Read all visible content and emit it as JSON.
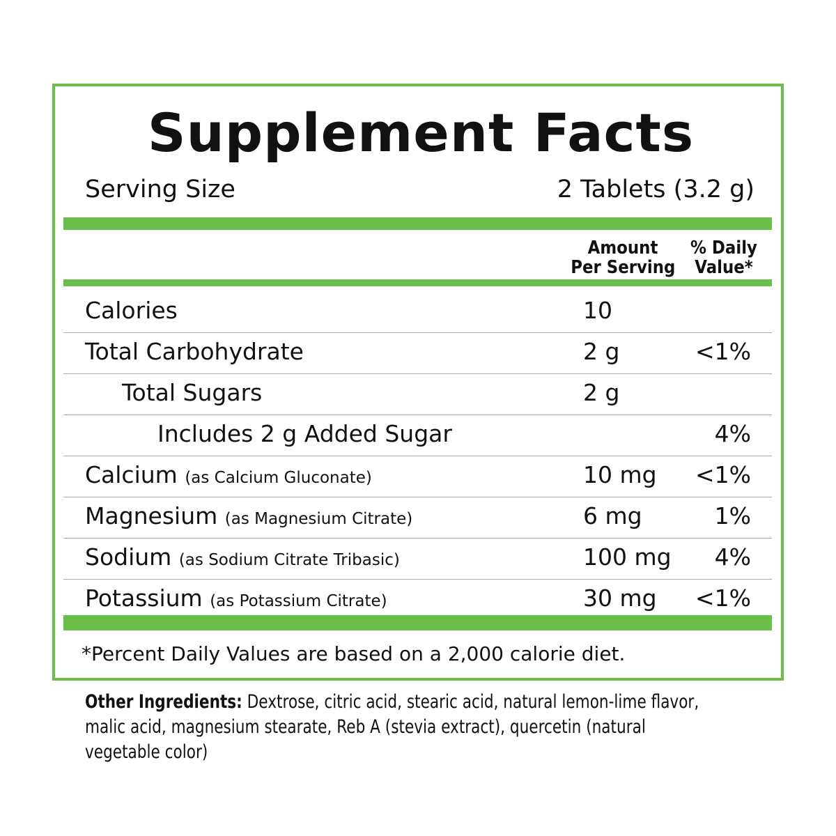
{
  "title": "Supplement Facts",
  "serving": {
    "label": "Serving Size",
    "value": "2 Tablets (3.2 g)"
  },
  "header": {
    "amount_line1": "Amount",
    "amount_line2": "Per Serving",
    "dv_line1": "% Daily",
    "dv_line2": "Value*"
  },
  "rows": [
    {
      "name": "Calories",
      "source": "",
      "amount": "10",
      "dv": "",
      "indent": 0
    },
    {
      "name": "Total Carbohydrate",
      "source": "",
      "amount": "2 g",
      "dv": "<1%",
      "indent": 0
    },
    {
      "name": "Total Sugars",
      "source": "",
      "amount": "2 g",
      "dv": "",
      "indent": 1
    },
    {
      "name": "Includes 2 g Added Sugar",
      "source": "",
      "amount": "",
      "dv": "4%",
      "indent": 2
    },
    {
      "name": "Calcium",
      "source": "(as Calcium Gluconate)",
      "amount": "10 mg",
      "dv": "<1%",
      "indent": 0
    },
    {
      "name": "Magnesium",
      "source": "(as Magnesium Citrate)",
      "amount": "6 mg",
      "dv": "1%",
      "indent": 0
    },
    {
      "name": "Sodium",
      "source": "(as Sodium Citrate Tribasic)",
      "amount": "100 mg",
      "dv": "4%",
      "indent": 0
    },
    {
      "name": "Potassium",
      "source": "(as Potassium Citrate)",
      "amount": "30 mg",
      "dv": "<1%",
      "indent": 0
    }
  ],
  "footnote": "*Percent Daily Values are based on a 2,000 calorie diet.",
  "ingredients": {
    "label": "Other Ingredients:",
    "text": " Dextrose, citric acid, stearic acid, natural lemon-lime flavor, malic acid, magnesium stearate, Reb A (stevia extract), quercetin (natural vegetable color)"
  },
  "colors": {
    "accent": "#6abf4b"
  }
}
